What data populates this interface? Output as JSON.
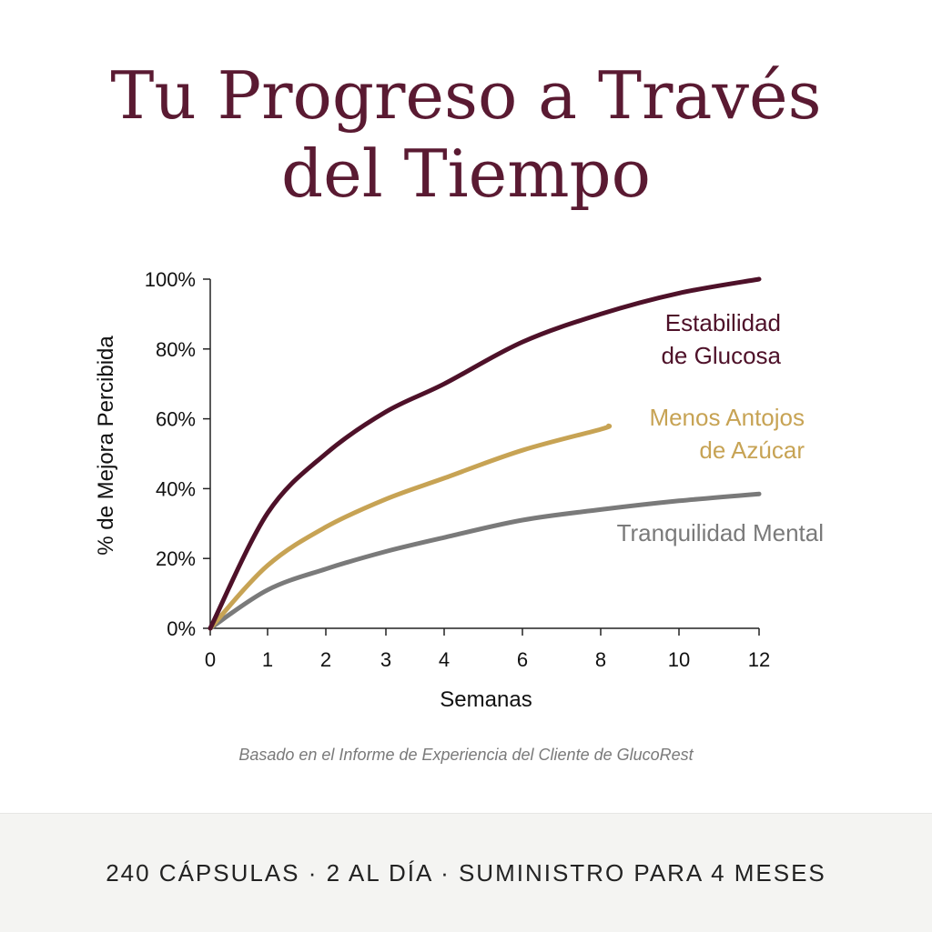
{
  "header": {
    "title_line1": "Tu Progreso a Través",
    "title_line2": "del Tiempo"
  },
  "chart_data": {
    "type": "line",
    "xlabel": "Semanas",
    "ylabel": "% de Mejora Percibida",
    "x_ticks": [
      "0",
      "1",
      "2",
      "3",
      "4",
      "6",
      "8",
      "10",
      "12"
    ],
    "y_ticks": [
      "0%",
      "20%",
      "40%",
      "60%",
      "80%",
      "100%"
    ],
    "ylim": [
      0,
      100
    ],
    "grid": false,
    "series": [
      {
        "name_lines": [
          "Estabilidad",
          "de Glucosa"
        ],
        "color": "#4e1129",
        "x": [
          0,
          1,
          2,
          3,
          4,
          6,
          8,
          10,
          12
        ],
        "y": [
          0,
          33,
          50,
          62,
          70,
          82,
          90,
          96,
          100
        ]
      },
      {
        "name_lines": [
          "Menos Antojos",
          "de Azúcar"
        ],
        "color": "#c7a354",
        "x": [
          0,
          1,
          2,
          3,
          4,
          6,
          8,
          8.2
        ],
        "y": [
          0,
          18,
          29,
          37,
          43,
          51,
          57,
          58
        ]
      },
      {
        "name_lines": [
          "Tranquilidad Mental"
        ],
        "color": "#7a7a7a",
        "x": [
          0,
          1,
          2,
          3,
          4,
          6,
          8,
          10,
          12
        ],
        "y": [
          0,
          11,
          17,
          22,
          26,
          31,
          34,
          36.5,
          38.5
        ]
      }
    ]
  },
  "source_note": "Basado en el Informe de Experiencia del Cliente de GlucoRest",
  "footer": {
    "text": "240 CÁPSULAS · 2 AL DÍA · SUMINISTRO PARA 4 MESES"
  }
}
